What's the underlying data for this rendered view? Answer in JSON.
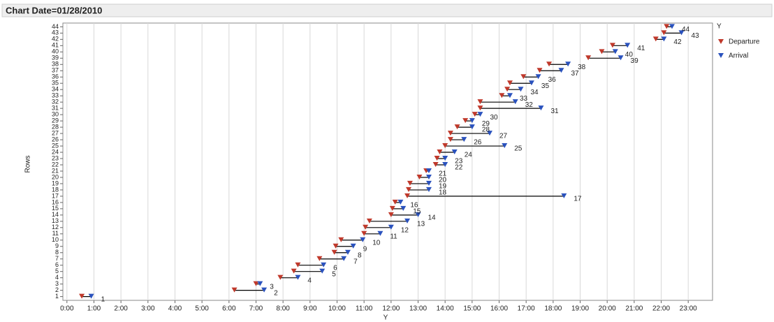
{
  "header": {
    "title": "Chart Date=01/28/2010"
  },
  "chart_data": {
    "type": "dumbbell",
    "x_label": "Y",
    "y_label": "Rows",
    "legend_title": "Y",
    "rows": [
      1,
      2,
      3,
      4,
      5,
      6,
      7,
      8,
      9,
      10,
      11,
      12,
      13,
      14,
      15,
      16,
      17,
      18,
      19,
      20,
      21,
      22,
      23,
      24,
      25,
      26,
      27,
      28,
      29,
      30,
      31,
      32,
      33,
      34,
      35,
      36,
      37,
      38,
      39,
      40,
      41,
      42,
      43,
      44
    ],
    "series": [
      {
        "name": "Departure",
        "color": "#c0392b",
        "values": [
          0.55,
          6.2,
          7.0,
          7.9,
          8.4,
          8.55,
          9.35,
          9.9,
          9.95,
          10.15,
          11.0,
          11.05,
          11.2,
          12.0,
          12.05,
          12.15,
          12.6,
          12.65,
          12.7,
          13.05,
          13.3,
          13.65,
          13.7,
          13.8,
          14.0,
          14.2,
          14.2,
          14.45,
          14.75,
          15.1,
          15.3,
          15.3,
          16.1,
          16.3,
          16.4,
          16.9,
          17.5,
          17.85,
          19.3,
          19.8,
          20.2,
          21.8,
          22.1,
          22.2
        ]
      },
      {
        "name": "Arrival",
        "color": "#2a52be",
        "values": [
          0.9,
          7.3,
          7.15,
          8.55,
          9.45,
          9.5,
          10.25,
          10.4,
          10.6,
          10.95,
          11.6,
          12.0,
          12.6,
          13.0,
          12.45,
          12.35,
          18.4,
          13.4,
          13.4,
          13.4,
          13.4,
          14.0,
          14.0,
          14.35,
          16.2,
          14.7,
          15.65,
          15.0,
          15.0,
          15.3,
          17.55,
          16.6,
          16.4,
          16.8,
          17.2,
          17.45,
          18.3,
          18.55,
          20.5,
          20.3,
          20.75,
          22.1,
          22.75,
          22.4
        ]
      }
    ],
    "xlim": [
      -0.15,
      23.9
    ],
    "xticks": [
      {
        "value": 0,
        "label": "0:00"
      },
      {
        "value": 1,
        "label": "1:00"
      },
      {
        "value": 2,
        "label": "2:00"
      },
      {
        "value": 3,
        "label": "3:00"
      },
      {
        "value": 4,
        "label": "4:00"
      },
      {
        "value": 5,
        "label": "5:00"
      },
      {
        "value": 6,
        "label": "6:00"
      },
      {
        "value": 7,
        "label": "7:00"
      },
      {
        "value": 8,
        "label": "8:00"
      },
      {
        "value": 9,
        "label": "9:00"
      },
      {
        "value": 10,
        "label": "10:00"
      },
      {
        "value": 11,
        "label": "11:00"
      },
      {
        "value": 12,
        "label": "12:00"
      },
      {
        "value": 13,
        "label": "13:00"
      },
      {
        "value": 14,
        "label": "14:00"
      },
      {
        "value": 15,
        "label": "15:00"
      },
      {
        "value": 16,
        "label": "16:00"
      },
      {
        "value": 17,
        "label": "17:00"
      },
      {
        "value": 18,
        "label": "18:00"
      },
      {
        "value": 19,
        "label": "19:00"
      },
      {
        "value": 20,
        "label": "20:00"
      },
      {
        "value": 21,
        "label": "21:00"
      },
      {
        "value": 22,
        "label": "22:00"
      },
      {
        "value": 23,
        "label": "23:00"
      }
    ],
    "ylim": [
      0.4,
      44.6
    ],
    "yticks": [
      1,
      2,
      3,
      4,
      5,
      6,
      7,
      8,
      9,
      10,
      11,
      12,
      13,
      14,
      15,
      16,
      17,
      18,
      19,
      20,
      21,
      22,
      23,
      24,
      25,
      26,
      27,
      28,
      29,
      30,
      31,
      32,
      33,
      34,
      35,
      36,
      37,
      38,
      39,
      40,
      41,
      42,
      43,
      44
    ],
    "grid": true,
    "legend": "right"
  }
}
